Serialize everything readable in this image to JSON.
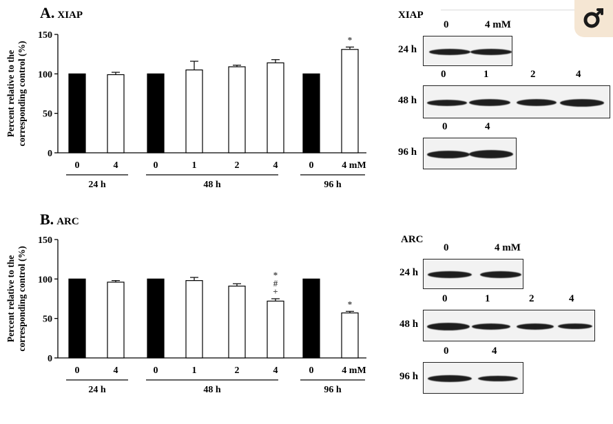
{
  "colors": {
    "control_bar": "#000000",
    "treated_bar": "#ffffff",
    "logo_bg": "#f5e6d3",
    "logo_fg": "#1a1a1a"
  },
  "logo": {
    "icon": "lens-logo-icon"
  },
  "panelA": {
    "letter": "A.",
    "protein": "XIAP"
  },
  "panelB": {
    "letter": "B.",
    "protein": "ARC"
  },
  "chart_data": [
    {
      "type": "bar",
      "panel": "A",
      "ylabel": "Percent relative to the corresponding control (%)",
      "ylim": [
        0,
        150
      ],
      "yticks": [
        "0",
        "50",
        "100",
        "150"
      ],
      "categories": [
        "0",
        "4",
        "0",
        "1",
        "2",
        "4",
        "0",
        "4 mM"
      ],
      "groups": [
        {
          "label": "24 h",
          "categories": [
            "0",
            "4"
          ]
        },
        {
          "label": "48 h",
          "categories": [
            "0",
            "1",
            "2",
            "4"
          ]
        },
        {
          "label": "96 h",
          "categories": [
            "0",
            "4 mM"
          ]
        }
      ],
      "values": [
        100,
        99,
        100,
        105,
        109,
        114,
        100,
        131
      ],
      "errors": [
        0,
        3,
        0,
        11,
        2,
        4,
        0,
        3
      ],
      "is_control": [
        true,
        false,
        true,
        false,
        false,
        false,
        true,
        false
      ],
      "annotations": [
        "",
        "",
        "",
        "",
        "",
        "",
        "",
        "*"
      ]
    },
    {
      "type": "bar",
      "panel": "B",
      "ylabel": "Percent relative to the corresponding control (%)",
      "ylim": [
        0,
        150
      ],
      "yticks": [
        "0",
        "50",
        "100",
        "150"
      ],
      "categories": [
        "0",
        "4",
        "0",
        "1",
        "2",
        "4",
        "0",
        "4 mM"
      ],
      "groups": [
        {
          "label": "24 h",
          "categories": [
            "0",
            "4"
          ]
        },
        {
          "label": "48 h",
          "categories": [
            "0",
            "1",
            "2",
            "4"
          ]
        },
        {
          "label": "96 h",
          "categories": [
            "0",
            "4 mM"
          ]
        }
      ],
      "values": [
        100,
        96,
        100,
        98,
        91,
        72,
        100,
        57
      ],
      "errors": [
        0,
        2,
        0,
        4,
        3,
        3,
        0,
        2
      ],
      "is_control": [
        true,
        false,
        true,
        false,
        false,
        false,
        true,
        false
      ],
      "annotations": [
        "",
        "",
        "",
        "",
        "",
        "*\n#\n+",
        "",
        "*"
      ]
    }
  ],
  "blotA": {
    "title": "XIAP",
    "rows": [
      {
        "label": "24 h",
        "lanes": [
          "0",
          "4 mM"
        ]
      },
      {
        "label": "48 h",
        "lanes": [
          "0",
          "1",
          "2",
          "4"
        ]
      },
      {
        "label": "96 h",
        "lanes": [
          "0",
          "4"
        ]
      }
    ]
  },
  "blotB": {
    "title": "ARC",
    "rows": [
      {
        "label": "24 h",
        "lanes": [
          "0",
          "4 mM"
        ]
      },
      {
        "label": "48 h",
        "lanes": [
          "0",
          "1",
          "2",
          "4"
        ]
      },
      {
        "label": "96 h",
        "lanes": [
          "0",
          "4"
        ]
      }
    ]
  }
}
